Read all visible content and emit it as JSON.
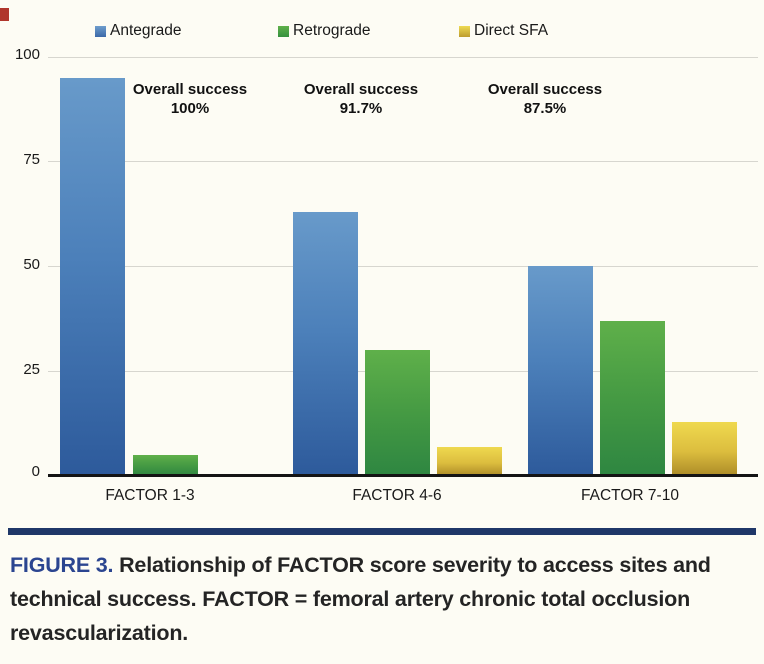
{
  "chart_data": {
    "type": "bar",
    "title": "",
    "xlabel": "",
    "ylabel": "",
    "categories": [
      "FACTOR 1-3",
      "FACTOR 4-6",
      "FACTOR 7-10"
    ],
    "series": [
      {
        "name": "Antegrade",
        "color": "#4F81BD",
        "values": [
          95,
          63,
          50
        ]
      },
      {
        "name": "Retrograde",
        "color": "#44A048",
        "values": [
          5,
          30,
          37
        ]
      },
      {
        "name": "Direct SFA",
        "color": "#E0C23C",
        "values": [
          0,
          7,
          13
        ]
      }
    ],
    "annotations": [
      {
        "label": "Overall success",
        "value": "100%"
      },
      {
        "label": "Overall success",
        "value": "91.7%"
      },
      {
        "label": "Overall success",
        "value": "87.5%"
      }
    ],
    "yticks": [
      "100",
      "75",
      "50",
      "25",
      "0"
    ],
    "ylim": [
      0,
      100
    ],
    "grid": true,
    "legend_position": "top"
  },
  "caption": {
    "figure_label": "FIGURE 3.",
    "text": "Relationship of FACTOR score severity to access sites and technical success. FACTOR = femoral artery chronic total occlusion revascularization."
  },
  "colors": {
    "divider": "#1F3768",
    "figure_label": "#2B4590",
    "background": "#FDFCF4",
    "gridline": "#D7D6CF"
  }
}
